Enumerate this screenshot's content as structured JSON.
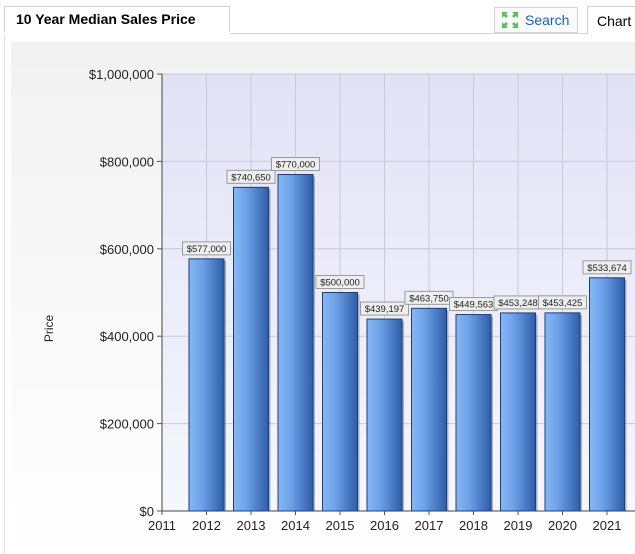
{
  "header": {
    "title": "10 Year Median Sales Price",
    "search_label": "Search",
    "chart_tab_label": "Chart"
  },
  "icons": {
    "search": "expand-arrows-icon"
  },
  "colors": {
    "bar_light": "#86b8f4",
    "bar_dark": "#2e5ea8",
    "plot_bg": "#e8e8fa",
    "grid": "#c8c8d8",
    "search_text": "#1a62b5",
    "icon_green": "#58c15a"
  },
  "chart_data": {
    "type": "bar",
    "title": "",
    "xlabel": "",
    "ylabel": "Price",
    "x_ticks": [
      "2011",
      "2012",
      "2013",
      "2014",
      "2015",
      "2016",
      "2017",
      "2018",
      "2019",
      "2020",
      "2021"
    ],
    "categories": [
      "2012",
      "2013",
      "2014",
      "2015",
      "2016",
      "2017",
      "2018",
      "2019",
      "2020",
      "2021"
    ],
    "values": [
      577000,
      740650,
      770000,
      500000,
      439197,
      463750,
      449563,
      453248,
      453425,
      533674
    ],
    "data_labels": [
      "$577,000",
      "$740,650",
      "$770,000",
      "$500,000",
      "$439,197",
      "$463,750",
      "$449,563",
      "$453,248",
      "$453,425",
      "$533,674"
    ],
    "y_ticks": [
      {
        "value": 0,
        "label": "$0"
      },
      {
        "value": 200000,
        "label": "$200,000"
      },
      {
        "value": 400000,
        "label": "$400,000"
      },
      {
        "value": 600000,
        "label": "$600,000"
      },
      {
        "value": 800000,
        "label": "$800,000"
      },
      {
        "value": 1000000,
        "label": "$1,000,000"
      }
    ],
    "ylim": [
      0,
      1000000
    ],
    "grid": true,
    "legend": "none"
  }
}
